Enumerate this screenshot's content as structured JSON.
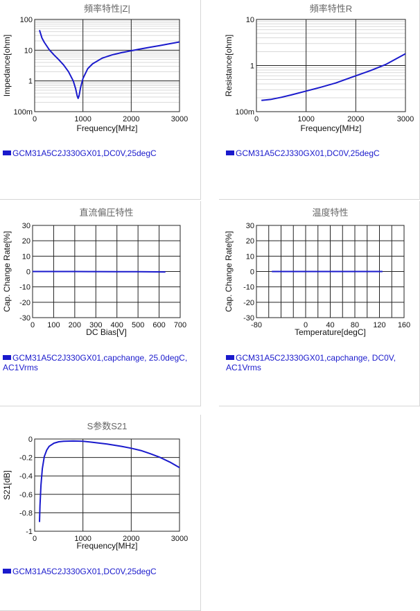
{
  "chart_data": [
    {
      "id": "impedance",
      "type": "line",
      "title": "頻率特性|Z|",
      "xlabel": "Frequency[MHz]",
      "ylabel": "Impedance[ohm]",
      "xscale": "linear",
      "yscale": "log",
      "xlim": [
        0,
        3000
      ],
      "ylim": [
        0.1,
        100
      ],
      "xticks": [
        "0",
        "1000",
        "2000",
        "3000"
      ],
      "yticks": [
        "100m",
        "1",
        "10",
        "100"
      ],
      "grid": true,
      "series": [
        {
          "name": "GCM31A5C2J330GX01,DC0V,25degC",
          "color": "#1a1acc",
          "x": [
            100,
            150,
            200,
            300,
            400,
            500,
            600,
            700,
            800,
            850,
            880,
            900,
            920,
            950,
            1000,
            1100,
            1200,
            1400,
            1600,
            1800,
            2000,
            2200,
            2400,
            2600,
            2800,
            3000
          ],
          "y": [
            45,
            25,
            18,
            10.5,
            7,
            4.9,
            3.3,
            2.0,
            1.0,
            0.55,
            0.33,
            0.27,
            0.33,
            0.6,
            1.2,
            2.5,
            3.6,
            5.5,
            7.0,
            8.3,
            9.6,
            11.0,
            12.5,
            14.2,
            16.2,
            18.5
          ]
        }
      ]
    },
    {
      "id": "resistance",
      "type": "line",
      "title": "頻率特性R",
      "xlabel": "Frequency[MHz]",
      "ylabel": "Resistance[ohm]",
      "xscale": "linear",
      "yscale": "log",
      "xlim": [
        0,
        3000
      ],
      "ylim": [
        0.1,
        10
      ],
      "xticks": [
        "0",
        "1000",
        "2000",
        "3000"
      ],
      "yticks": [
        "100m",
        "1",
        "10"
      ],
      "grid": true,
      "series": [
        {
          "name": "GCM31A5C2J330GX01,DC0V,25degC",
          "color": "#1a1acc",
          "x": [
            100,
            300,
            500,
            700,
            1000,
            1300,
            1600,
            2000,
            2300,
            2600,
            3000
          ],
          "y": [
            0.175,
            0.185,
            0.205,
            0.23,
            0.28,
            0.34,
            0.42,
            0.6,
            0.78,
            1.05,
            1.8
          ]
        }
      ]
    },
    {
      "id": "dcbias",
      "type": "line",
      "title": "直流偏圧特性",
      "xlabel": "DC Bias[V]",
      "ylabel": "Cap. Change Rate[%]",
      "xscale": "linear",
      "yscale": "linear",
      "xlim": [
        0,
        700
      ],
      "ylim": [
        -30,
        30
      ],
      "xticks": [
        "0",
        "100",
        "200",
        "300",
        "400",
        "500",
        "600",
        "700"
      ],
      "yticks": [
        "-30",
        "-20",
        "-10",
        "0",
        "10",
        "20",
        "30"
      ],
      "grid": true,
      "series": [
        {
          "name": "GCM31A5C2J330GX01,capchange, 25.0degC, AC1Vrms",
          "color": "#1a1acc",
          "x": [
            0,
            100,
            200,
            300,
            400,
            500,
            630
          ],
          "y": [
            0,
            0,
            0,
            -0.05,
            -0.1,
            -0.15,
            -0.25
          ]
        }
      ]
    },
    {
      "id": "temperature",
      "type": "line",
      "title": "温度特性",
      "xlabel": "Temperature[degC]",
      "ylabel": "Cap. Change Rate[%]",
      "xscale": "linear",
      "yscale": "linear",
      "xlim": [
        -80,
        160
      ],
      "ylim": [
        -30,
        30
      ],
      "xticks": [
        "-80",
        "0",
        "40",
        "80",
        "120",
        "160"
      ],
      "xtick_values": [
        -80,
        0,
        40,
        80,
        120,
        160
      ],
      "yticks": [
        "-30",
        "-20",
        "-10",
        "0",
        "10",
        "20",
        "30"
      ],
      "grid": true,
      "series": [
        {
          "name": "GCM31A5C2J330GX01,capchange, DC0V, AC1Vrms",
          "color": "#1a1acc",
          "x": [
            -55,
            -25,
            0,
            25,
            55,
            85,
            125
          ],
          "y": [
            0,
            0,
            0,
            0,
            0,
            0,
            0
          ]
        }
      ]
    },
    {
      "id": "s21",
      "type": "line",
      "title": "S参数S21",
      "xlabel": "Frequency[MHz]",
      "ylabel": "S21[dB]",
      "xscale": "linear",
      "yscale": "linear",
      "xlim": [
        0,
        3000
      ],
      "ylim": [
        -1,
        0
      ],
      "xticks": [
        "0",
        "1000",
        "2000",
        "3000"
      ],
      "yticks": [
        "-1",
        "-0.8",
        "-0.6",
        "-0.4",
        "-0.2",
        "0"
      ],
      "grid": true,
      "series": [
        {
          "name": "GCM31A5C2J330GX01,DC0V,25degC",
          "color": "#1a1acc",
          "x": [
            100,
            110,
            130,
            160,
            200,
            250,
            300,
            400,
            500,
            600,
            800,
            1000,
            1200,
            1500,
            1800,
            2000,
            2200,
            2400,
            2600,
            2800,
            3000
          ],
          "y": [
            -0.9,
            -0.72,
            -0.5,
            -0.32,
            -0.19,
            -0.12,
            -0.08,
            -0.045,
            -0.03,
            -0.025,
            -0.022,
            -0.025,
            -0.035,
            -0.055,
            -0.08,
            -0.1,
            -0.125,
            -0.16,
            -0.2,
            -0.25,
            -0.31
          ]
        }
      ]
    }
  ]
}
